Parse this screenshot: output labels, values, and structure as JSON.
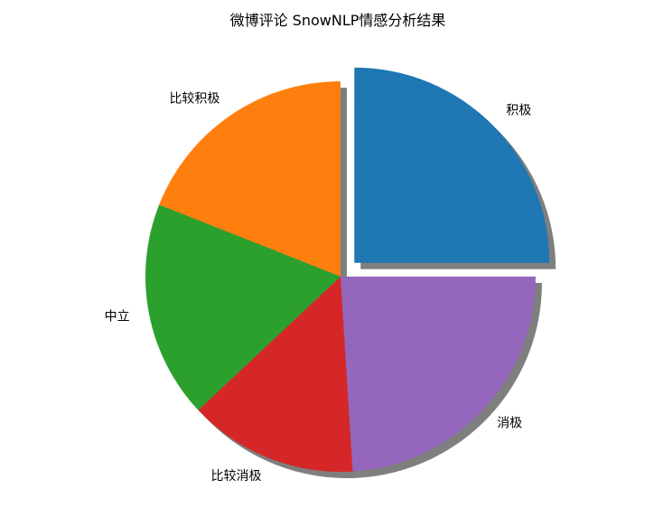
{
  "chart_data": {
    "type": "pie",
    "title": "微博评论 SnowNLP情感分析结果",
    "categories": [
      "积极",
      "比较积极",
      "中立",
      "比较消极",
      "消极"
    ],
    "values": [
      25,
      19,
      18,
      14,
      24
    ],
    "unit": "%",
    "explode": [
      0.1,
      0,
      0,
      0,
      0
    ],
    "shadow": true,
    "start_angle_deg": 0,
    "direction": "counterclockwise",
    "colors": [
      "#1f77b4",
      "#ff7f0e",
      "#2ca02c",
      "#d62728",
      "#9467bd"
    ],
    "legend": "none"
  }
}
